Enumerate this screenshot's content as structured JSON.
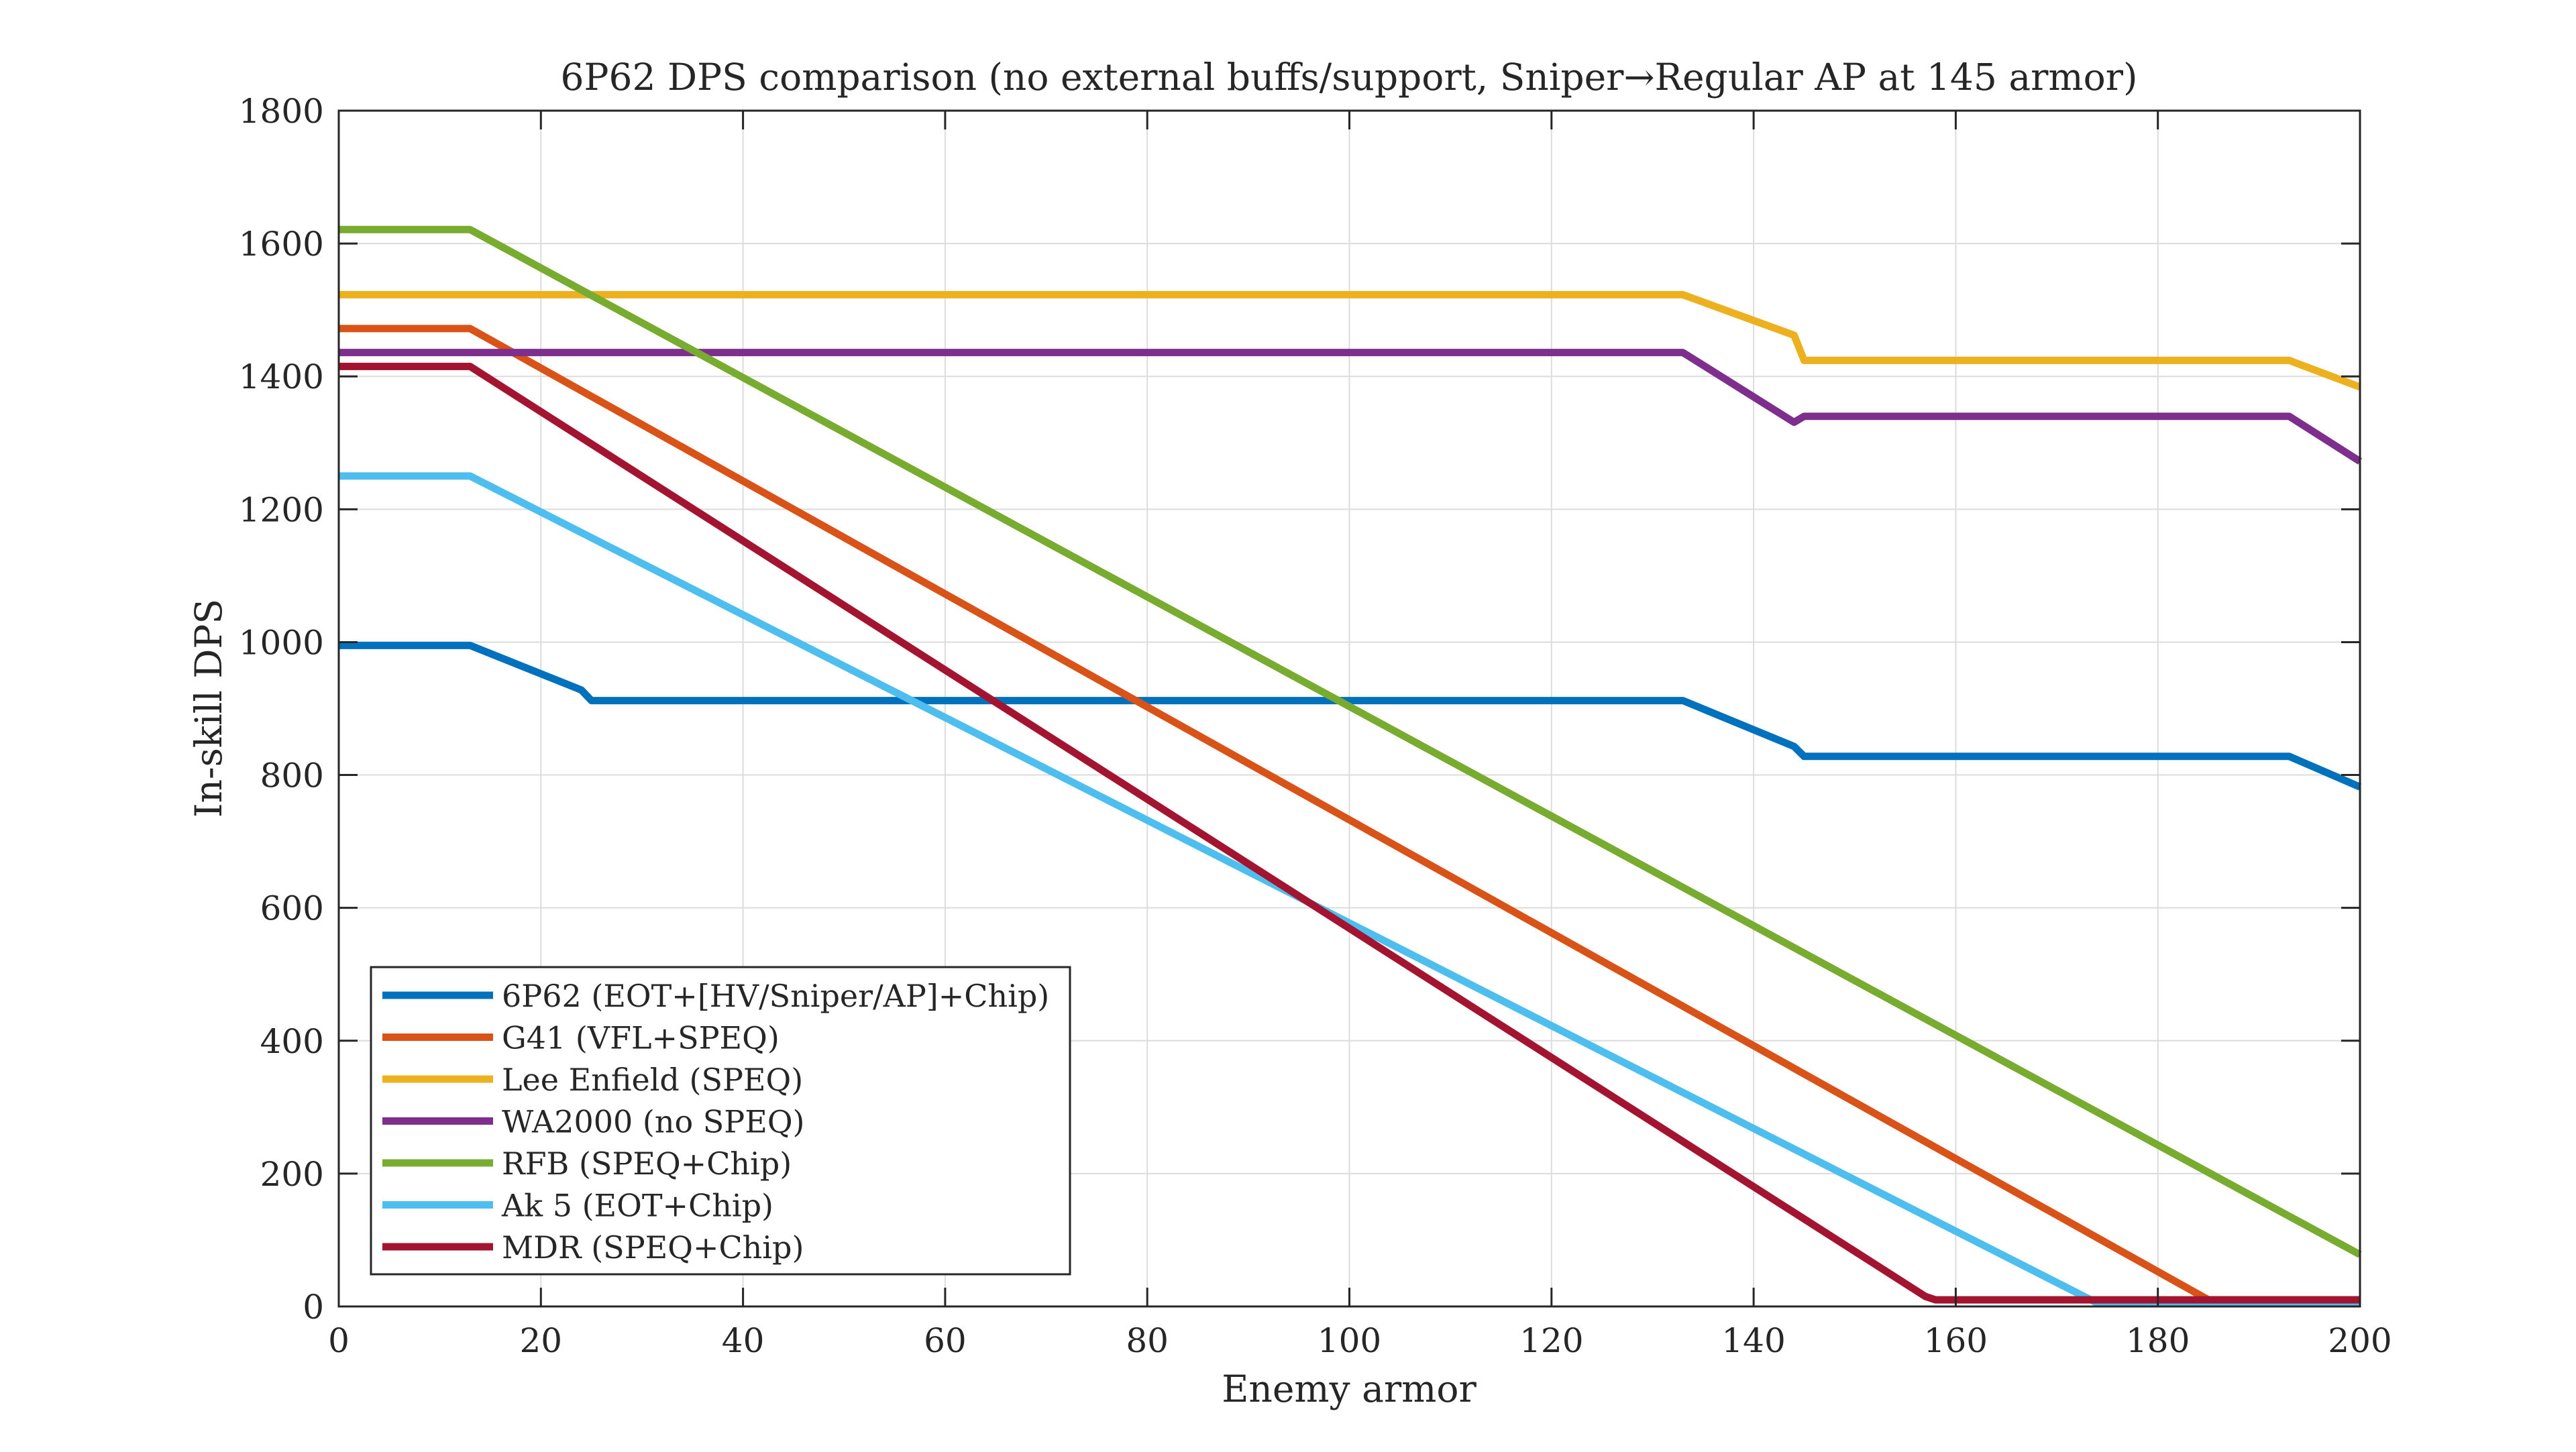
{
  "chart_data": {
    "type": "line",
    "title": "6P62 DPS comparison (no external buffs/support, Sniper→Regular AP at 145 armor)",
    "xlabel": "Enemy armor",
    "ylabel": "In-skill DPS",
    "xlim": [
      0,
      200
    ],
    "ylim": [
      0,
      1800
    ],
    "xticks": [
      0,
      20,
      40,
      60,
      80,
      100,
      120,
      140,
      160,
      180,
      200
    ],
    "yticks": [
      0,
      200,
      400,
      600,
      800,
      1000,
      1200,
      1400,
      1600,
      1800
    ],
    "grid": true,
    "legend_position": "bottom-left",
    "series": [
      {
        "name": "6P62 (EOT+[HV/Sniper/AP]+Chip)",
        "color": "#0072BD",
        "points": [
          [
            0,
            995
          ],
          [
            13,
            995
          ],
          [
            24,
            928
          ],
          [
            25,
            912
          ],
          [
            133,
            912
          ],
          [
            144,
            843
          ],
          [
            145,
            828
          ],
          [
            193,
            828
          ],
          [
            200,
            782
          ]
        ]
      },
      {
        "name": "G41 (VFL+SPEQ)",
        "color": "#D95319",
        "points": [
          [
            0,
            1472
          ],
          [
            13,
            1472
          ],
          [
            185,
            10
          ],
          [
            200,
            10
          ]
        ]
      },
      {
        "name": "Lee Enfield (SPEQ)",
        "color": "#EDB120",
        "points": [
          [
            0,
            1523
          ],
          [
            133,
            1523
          ],
          [
            144,
            1462
          ],
          [
            145,
            1424
          ],
          [
            193,
            1424
          ],
          [
            200,
            1384
          ]
        ]
      },
      {
        "name": "WA2000 (no SPEQ)",
        "color": "#7E2F8E",
        "points": [
          [
            0,
            1436
          ],
          [
            133,
            1436
          ],
          [
            144,
            1331
          ],
          [
            145,
            1340
          ],
          [
            193,
            1340
          ],
          [
            200,
            1272
          ]
        ]
      },
      {
        "name": "RFB (SPEQ+Chip)",
        "color": "#77AC30",
        "points": [
          [
            0,
            1621
          ],
          [
            13,
            1621
          ],
          [
            200,
            78
          ]
        ]
      },
      {
        "name": "Ak 5 (EOT+Chip)",
        "color": "#4DBEEE",
        "points": [
          [
            0,
            1250
          ],
          [
            13,
            1250
          ],
          [
            174,
            5
          ],
          [
            200,
            5
          ]
        ]
      },
      {
        "name": "MDR (SPEQ+Chip)",
        "color": "#A2142F",
        "points": [
          [
            0,
            1415
          ],
          [
            13,
            1415
          ],
          [
            157,
            15
          ],
          [
            158,
            10
          ],
          [
            200,
            10
          ]
        ]
      }
    ]
  }
}
